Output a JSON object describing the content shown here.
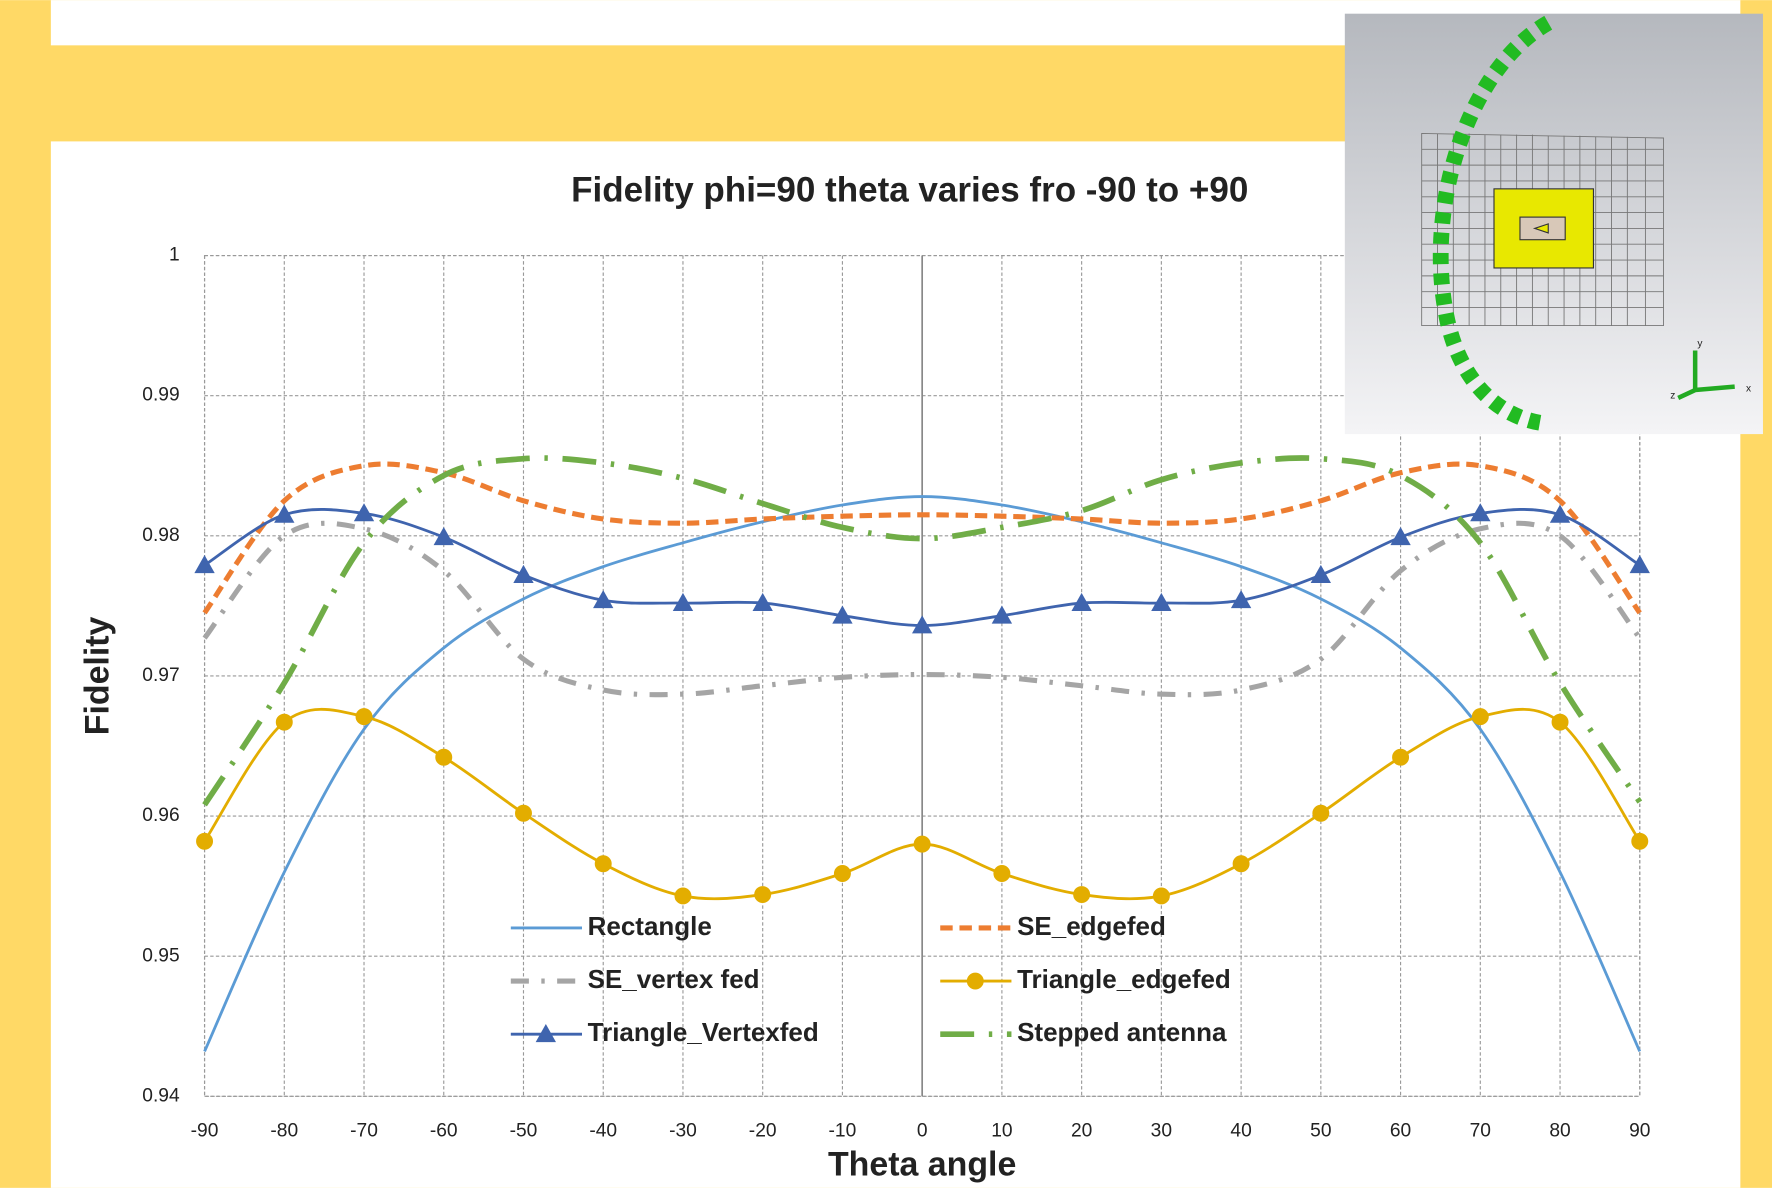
{
  "chart_data": {
    "type": "line",
    "title": "Fidelity phi=90 theta varies fro -90 to +90",
    "x_label": "Theta angle",
    "y_label": "Fidelity",
    "x": [
      -90,
      -80,
      -70,
      -60,
      -50,
      -40,
      -30,
      -20,
      -10,
      0,
      10,
      20,
      30,
      40,
      50,
      60,
      70,
      80,
      90
    ],
    "xlim": [
      -90,
      90
    ],
    "xticks": [
      -90,
      -80,
      -70,
      -60,
      -50,
      -40,
      -30,
      -20,
      -10,
      0,
      10,
      20,
      30,
      40,
      50,
      60,
      70,
      80,
      90
    ],
    "ylim": [
      0.94,
      1
    ],
    "yticks": [
      0.94,
      0.95,
      0.96,
      0.97,
      0.98,
      0.99,
      1
    ],
    "grid": true,
    "smooth": true,
    "series": [
      {
        "name": "Rectangle",
        "color": "#5b9bd5",
        "line_style": "solid",
        "marker": "none",
        "values": [
          0.9432,
          0.956,
          0.9662,
          0.972,
          0.9755,
          0.9778,
          0.9795,
          0.981,
          0.9822,
          0.9828,
          0.9822,
          0.981,
          0.9795,
          0.9778,
          0.9755,
          0.972,
          0.9662,
          0.956,
          0.9432
        ]
      },
      {
        "name": "SE_edgefed",
        "color": "#ed7d31",
        "line_style": "dashed",
        "marker": "none",
        "values": [
          0.9745,
          0.9825,
          0.985,
          0.9845,
          0.9825,
          0.9812,
          0.9809,
          0.9812,
          0.9814,
          0.9815,
          0.9814,
          0.9812,
          0.9809,
          0.9812,
          0.9825,
          0.9845,
          0.985,
          0.9825,
          0.9745
        ]
      },
      {
        "name": "SE_vertex fed",
        "color": "#a5a5a5",
        "line_style": "dash-dot",
        "marker": "none",
        "values": [
          0.9727,
          0.98,
          0.9805,
          0.9775,
          0.9712,
          0.969,
          0.9687,
          0.9693,
          0.9699,
          0.9701,
          0.9699,
          0.9693,
          0.9687,
          0.969,
          0.9712,
          0.9775,
          0.9805,
          0.98,
          0.9727
        ]
      },
      {
        "name": "Triangle_edgefed",
        "color": "#e3ad00",
        "line_style": "solid",
        "marker": "circle",
        "values": [
          0.9582,
          0.9667,
          0.9671,
          0.9642,
          0.9602,
          0.9566,
          0.9543,
          0.9544,
          0.9559,
          0.958,
          0.9559,
          0.9544,
          0.9543,
          0.9566,
          0.9602,
          0.9642,
          0.9671,
          0.9667,
          0.9582
        ]
      },
      {
        "name": "Triangle_Vertexfed",
        "color": "#3f64ae",
        "line_style": "solid",
        "marker": "triangle",
        "values": [
          0.9779,
          0.9815,
          0.9816,
          0.9799,
          0.9772,
          0.9754,
          0.9752,
          0.9752,
          0.9743,
          0.9736,
          0.9743,
          0.9752,
          0.9752,
          0.9754,
          0.9772,
          0.9799,
          0.9816,
          0.9815,
          0.9779
        ]
      },
      {
        "name": "Stepped antenna",
        "color": "#70ad47",
        "line_style": "long-dash-dot",
        "marker": "none",
        "values": [
          0.9608,
          0.9695,
          0.9795,
          0.9843,
          0.9855,
          0.9852,
          0.9841,
          0.9823,
          0.9806,
          0.9798,
          0.9806,
          0.9818,
          0.984,
          0.9852,
          0.9855,
          0.9843,
          0.9795,
          0.9695,
          0.961
        ]
      }
    ]
  },
  "inset": {
    "axis_labels": [
      "y",
      "z",
      "x"
    ]
  }
}
